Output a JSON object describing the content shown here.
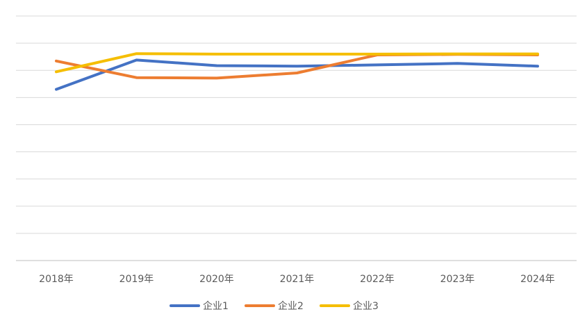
{
  "chart_data": {
    "type": "line",
    "categories": [
      "2018年",
      "2019年",
      "2020年",
      "2021年",
      "2022年",
      "2023年",
      "2024年"
    ],
    "ylim": [
      0,
      1
    ],
    "grid": true,
    "legend_position": "bottom",
    "series": [
      {
        "name": "企业1",
        "color": "#4472C4",
        "values": [
          0.7,
          0.82,
          0.797,
          0.795,
          0.8,
          0.806,
          0.795
        ]
      },
      {
        "name": "企业2",
        "color": "#ED7D31",
        "values": [
          0.816,
          0.748,
          0.746,
          0.767,
          0.841,
          0.843,
          0.841
        ]
      },
      {
        "name": "企业3",
        "color": "#F5BE00",
        "values": [
          0.772,
          0.846,
          0.844,
          0.844,
          0.844,
          0.845,
          0.845
        ]
      }
    ]
  }
}
